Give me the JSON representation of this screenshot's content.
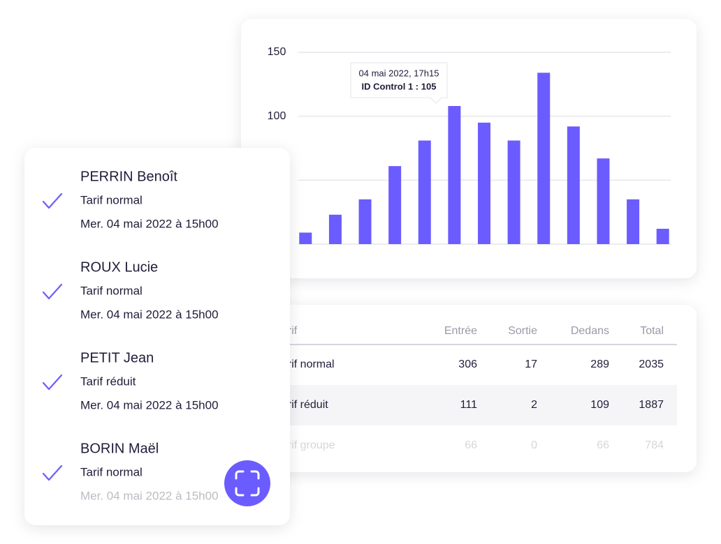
{
  "chart_data": {
    "type": "bar",
    "categories": [
      null,
      null,
      null,
      null,
      null,
      null,
      null,
      null,
      null,
      null,
      null,
      null,
      null
    ],
    "values": [
      9,
      23,
      35,
      61,
      81,
      108,
      95,
      81,
      134,
      92,
      67,
      35,
      12
    ],
    "color": "#6b5cff",
    "ylim": [
      0,
      150
    ],
    "yticks": [
      100,
      150
    ],
    "gridlines": [
      0,
      50,
      100,
      150
    ],
    "tooltip": {
      "lines": [
        "04 mai 2022, 17h15",
        "ID Control 1 : 105"
      ]
    }
  },
  "table": {
    "columns": [
      "Tarif",
      "Entrée",
      "Sortie",
      "Dedans",
      "Total"
    ],
    "rows": [
      [
        "Tarif normal",
        306,
        17,
        289,
        2035
      ],
      [
        "Tarif réduit",
        111,
        2,
        109,
        1887
      ],
      [
        "Tarif groupe",
        66,
        0,
        66,
        784
      ]
    ]
  },
  "list": [
    {
      "name": "PERRIN Benoît",
      "tarif": "Tarif normal",
      "date": "Mer. 04 mai 2022 à 15h00"
    },
    {
      "name": "ROUX Lucie",
      "tarif": "Tarif normal",
      "date": "Mer. 04 mai 2022 à 15h00"
    },
    {
      "name": "PETIT Jean",
      "tarif": "Tarif réduit",
      "date": "Mer. 04 mai 2022 à 15h00"
    },
    {
      "name": "BORIN Maël",
      "tarif": "Tarif normal",
      "date": "Mer. 04 mai 2022 à 15h00"
    }
  ]
}
